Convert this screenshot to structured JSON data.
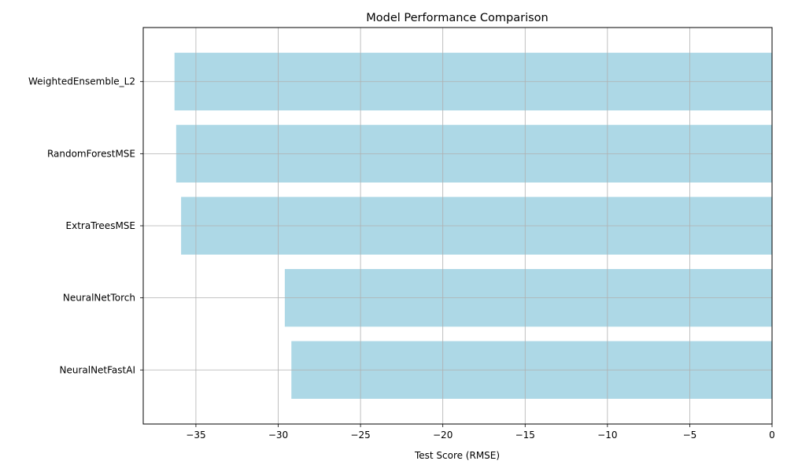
{
  "chart_data": {
    "type": "bar",
    "orientation": "horizontal",
    "title": "Model Performance Comparison",
    "xlabel": "Test Score (RMSE)",
    "ylabel": "",
    "categories": [
      "WeightedEnsemble_L2",
      "RandomForestMSE",
      "ExtraTreesMSE",
      "NeuralNetTorch",
      "NeuralNetFastAI"
    ],
    "values": [
      -36.3,
      -36.2,
      -35.9,
      -29.6,
      -29.2
    ],
    "xlim": [
      -38.2,
      0
    ],
    "xticks": [
      -35,
      -30,
      -25,
      -20,
      -15,
      -10,
      -5,
      0
    ],
    "xtick_labels": [
      "−35",
      "−30",
      "−25",
      "−20",
      "−15",
      "−10",
      "−5",
      "0"
    ],
    "grid": true,
    "legend": "none",
    "colors": {
      "bar": "#add8e6",
      "grid": "#b0b0b0",
      "axis": "#000000"
    }
  }
}
